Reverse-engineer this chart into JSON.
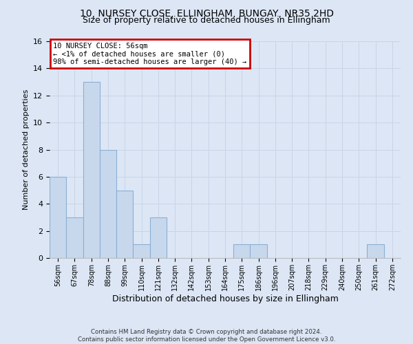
{
  "title": "10, NURSEY CLOSE, ELLINGHAM, BUNGAY, NR35 2HD",
  "subtitle": "Size of property relative to detached houses in Ellingham",
  "xlabel": "Distribution of detached houses by size in Ellingham",
  "ylabel": "Number of detached properties",
  "bin_labels": [
    "56sqm",
    "67sqm",
    "78sqm",
    "88sqm",
    "99sqm",
    "110sqm",
    "121sqm",
    "132sqm",
    "142sqm",
    "153sqm",
    "164sqm",
    "175sqm",
    "186sqm",
    "196sqm",
    "207sqm",
    "218sqm",
    "229sqm",
    "240sqm",
    "250sqm",
    "261sqm",
    "272sqm"
  ],
  "bar_heights": [
    6,
    3,
    13,
    8,
    5,
    1,
    3,
    0,
    0,
    0,
    0,
    1,
    1,
    0,
    0,
    0,
    0,
    0,
    0,
    1,
    0
  ],
  "bar_color": "#c8d8ec",
  "bar_edge_color": "#8aafd4",
  "annotation_text": "10 NURSEY CLOSE: 56sqm\n← <1% of detached houses are smaller (0)\n98% of semi-detached houses are larger (40) →",
  "annotation_box_color": "#ffffff",
  "annotation_box_edge_color": "#cc0000",
  "ylim": [
    0,
    16
  ],
  "yticks": [
    0,
    2,
    4,
    6,
    8,
    10,
    12,
    14,
    16
  ],
  "grid_color": "#c8d4e8",
  "background_color": "#dce6f5",
  "title_fontsize": 10,
  "subtitle_fontsize": 9,
  "ylabel_fontsize": 8,
  "xlabel_fontsize": 9,
  "tick_fontsize": 8,
  "xtick_fontsize": 7,
  "footer_line1": "Contains HM Land Registry data © Crown copyright and database right 2024.",
  "footer_line2": "Contains public sector information licensed under the Open Government Licence v3.0."
}
